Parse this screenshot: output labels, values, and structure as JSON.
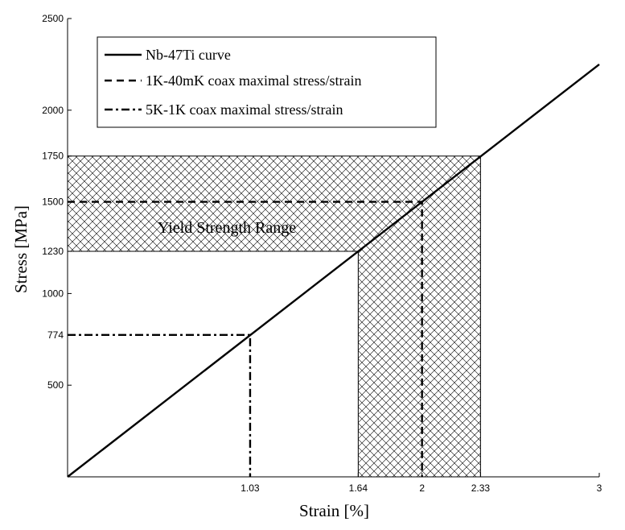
{
  "chart_data": {
    "type": "line",
    "title": "",
    "xlabel": "Strain [%]",
    "ylabel": "Stress [MPa]",
    "xlim": [
      0,
      3
    ],
    "ylim": [
      0,
      2500
    ],
    "x_ticks": [
      1.03,
      1.64,
      2,
      2.33,
      3
    ],
    "x_tick_labels": [
      "1.03",
      "1.64",
      "2",
      "2.33",
      "3"
    ],
    "y_ticks": [
      500,
      774,
      1000,
      1230,
      1500,
      1750,
      2000,
      2500
    ],
    "y_tick_labels": [
      "500",
      "774",
      "1000",
      "1230",
      "1500",
      "1750",
      "2000",
      "2500"
    ],
    "grid": false,
    "legend_position": "top-left",
    "series": [
      {
        "name": "Nb-47Ti curve",
        "style": "solid",
        "x": [
          0,
          3
        ],
        "y": [
          0,
          2250
        ]
      },
      {
        "name": "1K-40mK coax maximal stress/strain",
        "style": "dashed",
        "x": [
          0,
          2,
          2
        ],
        "y": [
          1500,
          1500,
          0
        ]
      },
      {
        "name": "5K-1K coax maximal stress/strain",
        "style": "dashdot",
        "x": [
          0,
          1.03,
          1.03
        ],
        "y": [
          774,
          774,
          0
        ]
      }
    ],
    "shaded_region": {
      "label": "Yield Strength Range",
      "pattern": "crosshatch",
      "stress_range": [
        1230,
        1750
      ],
      "strain_range": [
        1.64,
        2.33
      ]
    }
  },
  "colors": {
    "line": "#000000",
    "background": "#ffffff"
  }
}
